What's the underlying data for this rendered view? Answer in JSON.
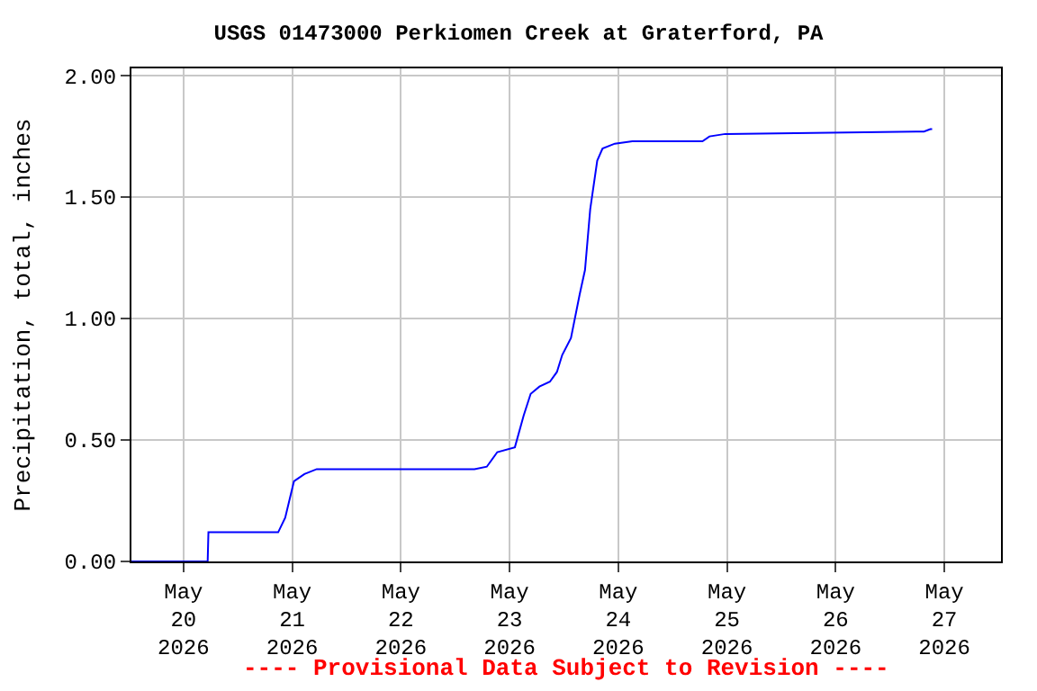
{
  "chart_data": {
    "type": "line",
    "title": "USGS 01473000 Perkiomen Creek at Graterford, PA",
    "ylabel": "Precipitation, total, inches",
    "annotations": [
      "---- Provisional Data Subject to Revision ----"
    ],
    "x": [
      "2026-05-19T12:30",
      "2026-05-20T05:20",
      "2026-05-20T05:30",
      "2026-05-20T20:54",
      "2026-05-20T22:27",
      "2026-05-21T00:23",
      "2026-05-21T02:42",
      "2026-05-21T05:25",
      "2026-05-22T16:15",
      "2026-05-22T18:58",
      "2026-05-22T21:17",
      "2026-05-23T01:10",
      "2026-05-23T03:06",
      "2026-05-23T04:39",
      "2026-05-23T06:35",
      "2026-05-23T08:54",
      "2026-05-23T10:27",
      "2026-05-23T11:37",
      "2026-05-23T13:33",
      "2026-05-23T15:29",
      "2026-05-23T16:39",
      "2026-05-23T17:48",
      "2026-05-23T19:21",
      "2026-05-23T20:31",
      "2026-05-23T23:14",
      "2026-05-24T03:06",
      "2026-05-24T18:35",
      "2026-05-24T20:08",
      "2026-05-24T23:37",
      "2026-05-26T19:30",
      "2026-05-26T20:54",
      "2026-05-26T21:18"
    ],
    "series": [
      {
        "color": "#0000ff",
        "values": [
          0,
          0,
          0.12,
          0.12,
          0.18,
          0.33,
          0.36,
          0.38,
          0.38,
          0.39,
          0.45,
          0.47,
          0.6,
          0.69,
          0.72,
          0.74,
          0.78,
          0.85,
          0.92,
          1.1,
          1.2,
          1.45,
          1.65,
          1.7,
          1.72,
          1.73,
          1.73,
          1.75,
          1.76,
          1.77,
          1.78,
          1.78
        ]
      }
    ],
    "xlim": [
      "2026-05-19T12:30",
      "2026-05-27T12:30"
    ],
    "xticks": [
      {
        "value": "2026-05-20",
        "label": "May\n20\n2026"
      },
      {
        "value": "2026-05-21",
        "label": "May\n21\n2026"
      },
      {
        "value": "2026-05-22",
        "label": "May\n22\n2026"
      },
      {
        "value": "2026-05-23",
        "label": "May\n23\n2026"
      },
      {
        "value": "2026-05-24",
        "label": "May\n24\n2026"
      },
      {
        "value": "2026-05-25",
        "label": "May\n25\n2026"
      },
      {
        "value": "2026-05-26",
        "label": "May\n26\n2026"
      },
      {
        "value": "2026-05-27",
        "label": "May\n27\n2026"
      }
    ],
    "ylim": [
      0,
      2.03
    ],
    "yticks": [
      {
        "value": 0,
        "label": "0.00"
      },
      {
        "value": 0.5,
        "label": "0.50"
      },
      {
        "value": 1,
        "label": "1.00"
      },
      {
        "value": 1.5,
        "label": "1.50"
      },
      {
        "value": 2,
        "label": "2.00"
      }
    ],
    "grid": true,
    "marker": "none",
    "line_style": "solid"
  }
}
